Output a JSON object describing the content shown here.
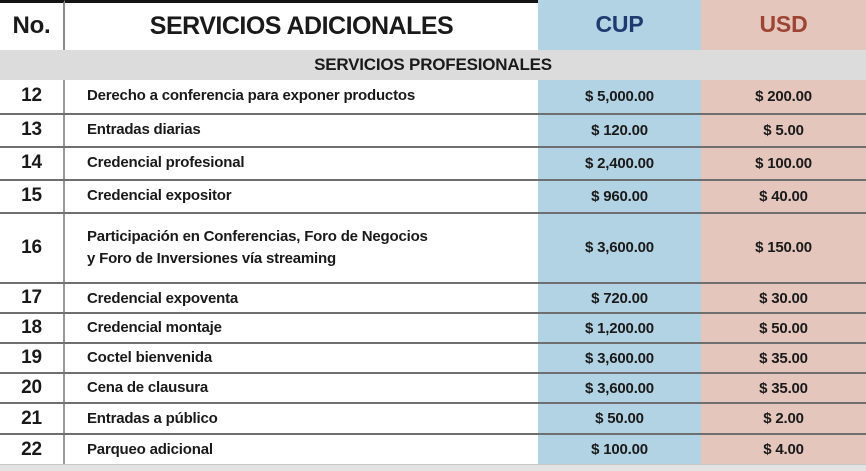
{
  "table": {
    "headers": {
      "no": "No.",
      "title": "SERVICIOS ADICIONALES",
      "cup": "CUP",
      "usd": "USD"
    },
    "section_title": "SERVICIOS PROFESIONALES",
    "rows": [
      {
        "no": "12",
        "desc": "Derecho a conferencia para exponer productos",
        "cup": "$ 5,000.00",
        "usd": "$ 200.00"
      },
      {
        "no": "13",
        "desc": "Entradas diarias",
        "cup": "$ 120.00",
        "usd": "$ 5.00"
      },
      {
        "no": "14",
        "desc": "Credencial profesional",
        "cup": "$ 2,400.00",
        "usd": "$ 100.00"
      },
      {
        "no": "15",
        "desc": "Credencial expositor",
        "cup": "$ 960.00",
        "usd": "$ 40.00"
      },
      {
        "no": "16",
        "desc": "Participación en Conferencias, Foro de Negocios\ny Foro de Inversiones vía streaming",
        "cup": "$ 3,600.00",
        "usd": "$ 150.00"
      },
      {
        "no": "17",
        "desc": "Credencial expoventa",
        "cup": "$ 720.00",
        "usd": "$ 30.00"
      },
      {
        "no": "18",
        "desc": "Credencial montaje",
        "cup": "$ 1,200.00",
        "usd": "$ 50.00"
      },
      {
        "no": "19",
        "desc": "Coctel bienvenida",
        "cup": "$ 3,600.00",
        "usd": "$ 35.00"
      },
      {
        "no": "20",
        "desc": "Cena de clausura",
        "cup": "$ 3,600.00",
        "usd": "$ 35.00"
      },
      {
        "no": "21",
        "desc": "Entradas a público",
        "cup": "$ 50.00",
        "usd": "$ 2.00"
      },
      {
        "no": "22",
        "desc": "Parqueo adicional",
        "cup": "$ 100.00",
        "usd": "$ 4.00"
      }
    ],
    "colors": {
      "cup_column_bg": "#b2d3e4",
      "usd_column_bg": "#e5c6bd",
      "cup_header_text": "#1e3a6e",
      "usd_header_text": "#9e4434",
      "section_band_bg": "#dcdcdc",
      "body_text": "#1a1a1a"
    }
  }
}
